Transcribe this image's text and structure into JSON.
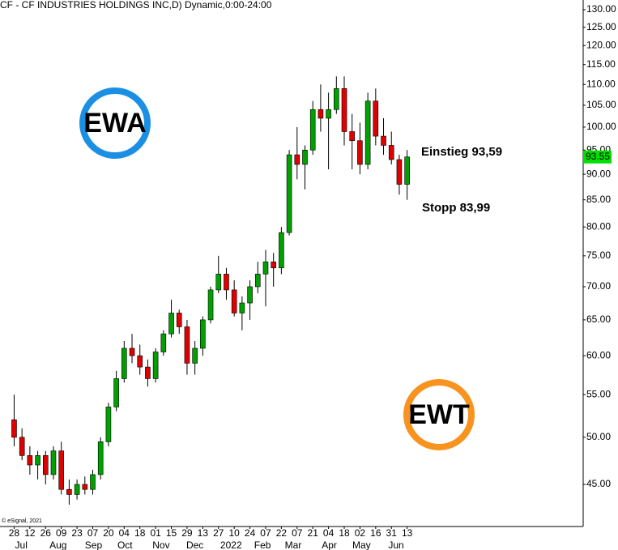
{
  "chart_data": {
    "type": "candlestick",
    "title": "CF - CF INDUSTRIES HOLDINGS INC,D) Dynamic,0:00-24:00",
    "copyright": "© eSignal, 2021",
    "log_scale": true,
    "up_color": "#00a000",
    "down_color": "#e00000",
    "open": [
      52,
      50,
      48,
      47,
      48,
      46,
      48.5,
      44.5,
      44,
      45,
      44.5,
      46,
      49.5,
      53.5,
      57,
      61,
      60,
      58.5,
      57,
      60.5,
      63,
      66,
      64,
      59,
      61,
      65,
      69.5,
      72,
      69.5,
      66,
      67.5,
      70,
      72,
      74,
      73,
      79,
      94,
      92,
      95,
      104,
      102,
      104,
      109,
      99,
      97,
      92,
      106,
      98,
      96,
      93,
      88
    ],
    "high": [
      55,
      51,
      49,
      48.5,
      48.5,
      49,
      49.5,
      45.5,
      45.5,
      45.8,
      46.5,
      50,
      54,
      58,
      62,
      63,
      61.5,
      59.5,
      61,
      63.5,
      68,
      66.5,
      65,
      62,
      65.5,
      70,
      75,
      73,
      71,
      68.5,
      71,
      74,
      76,
      75.5,
      80,
      95,
      100,
      96,
      106,
      110,
      108,
      112,
      112,
      103,
      101,
      108,
      109,
      102,
      99,
      94,
      95
    ],
    "low": [
      49,
      47.5,
      46,
      45.5,
      45,
      45.5,
      44,
      43,
      43.5,
      44,
      44,
      45.5,
      49,
      53,
      56.5,
      59,
      57.5,
      56,
      56.5,
      60,
      62.5,
      63,
      57.5,
      57.5,
      60,
      64.5,
      69,
      68,
      65.5,
      63.5,
      65,
      69,
      67,
      70,
      72,
      78.5,
      89,
      87,
      94,
      99,
      91,
      103,
      96,
      91,
      90,
      91,
      96,
      94,
      92,
      86,
      85
    ],
    "close": [
      50,
      48,
      47,
      48,
      46,
      48.5,
      44.5,
      44,
      45,
      44.5,
      46,
      49.5,
      53.5,
      57,
      61,
      60,
      58.5,
      57,
      60.5,
      63,
      66,
      64,
      59,
      61,
      65,
      69.5,
      72,
      69.5,
      66,
      67.5,
      70,
      72,
      74,
      73,
      79,
      94,
      92,
      95,
      104,
      102,
      104,
      109,
      99,
      97,
      92,
      106,
      98,
      96,
      93,
      88,
      93.55
    ],
    "last_price": 93.55,
    "last_price_color": "#00e000",
    "xlim": [
      -1.8,
      72.4
    ],
    "xticks": [
      {
        "value": 0,
        "label": "28"
      },
      {
        "value": 2,
        "label": "12"
      },
      {
        "value": 4,
        "label": "26"
      },
      {
        "value": 6,
        "label": "09"
      },
      {
        "value": 8,
        "label": "23"
      },
      {
        "value": 10,
        "label": "07"
      },
      {
        "value": 12,
        "label": "20"
      },
      {
        "value": 14,
        "label": "04"
      },
      {
        "value": 16,
        "label": "18"
      },
      {
        "value": 18,
        "label": "01"
      },
      {
        "value": 20,
        "label": "15"
      },
      {
        "value": 22,
        "label": "29"
      },
      {
        "value": 24,
        "label": "13"
      },
      {
        "value": 26,
        "label": "27"
      },
      {
        "value": 28,
        "label": "10"
      },
      {
        "value": 30,
        "label": "24"
      },
      {
        "value": 32,
        "label": "07"
      },
      {
        "value": 34,
        "label": "22"
      },
      {
        "value": 36,
        "label": "07"
      },
      {
        "value": 38,
        "label": "21"
      },
      {
        "value": 40,
        "label": "04"
      },
      {
        "value": 42,
        "label": "18"
      },
      {
        "value": 44,
        "label": "02"
      },
      {
        "value": 46,
        "label": "16"
      },
      {
        "value": 48,
        "label": "31"
      },
      {
        "value": 50,
        "label": "13"
      }
    ],
    "month_labels": [
      {
        "value": 0.9,
        "label": "Jul"
      },
      {
        "value": 5.6,
        "label": "Aug"
      },
      {
        "value": 10.1,
        "label": "Sep"
      },
      {
        "value": 14.1,
        "label": "Oct"
      },
      {
        "value": 18.7,
        "label": "Nov"
      },
      {
        "value": 23,
        "label": "Dec"
      },
      {
        "value": 27.6,
        "label": "2022"
      },
      {
        "value": 31.6,
        "label": "Feb"
      },
      {
        "value": 35.5,
        "label": "Mar"
      },
      {
        "value": 40.1,
        "label": "Apr"
      },
      {
        "value": 44.2,
        "label": "May"
      },
      {
        "value": 48.6,
        "label": "Jun"
      }
    ],
    "ylim": [
      40.96,
      132.85
    ],
    "yticks": [
      {
        "value": 45,
        "label": "45.00"
      },
      {
        "value": 50,
        "label": "50.00"
      },
      {
        "value": 55,
        "label": "55.00"
      },
      {
        "value": 60,
        "label": "60.00"
      },
      {
        "value": 65,
        "label": "65.00"
      },
      {
        "value": 70,
        "label": "70.00"
      },
      {
        "value": 75,
        "label": "75.00"
      },
      {
        "value": 80,
        "label": "80.00"
      },
      {
        "value": 85,
        "label": "85.00"
      },
      {
        "value": 90,
        "label": "90.00"
      },
      {
        "value": 95,
        "label": "95.00"
      },
      {
        "value": 100,
        "label": "100.00"
      },
      {
        "value": 105,
        "label": "105.00"
      },
      {
        "value": 110,
        "label": "110.00"
      },
      {
        "value": 115,
        "label": "115.00"
      },
      {
        "value": 120,
        "label": "120.00"
      },
      {
        "value": 125,
        "label": "125.00"
      },
      {
        "value": 130,
        "label": "130.00"
      }
    ],
    "annotations": [
      {
        "text": "Einstieg 93,59",
        "color": "#0000cc"
      },
      {
        "text": "Stopp 83,99",
        "color": "#dd0000"
      }
    ],
    "logos": [
      {
        "text": "EWA",
        "color": "#1a8fe3"
      },
      {
        "text": "EWT",
        "color": "#f7931e"
      }
    ]
  }
}
